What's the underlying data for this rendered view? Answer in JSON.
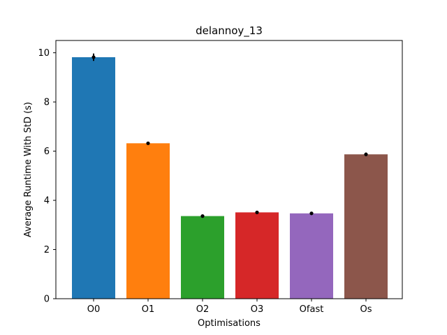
{
  "chart_data": {
    "type": "bar",
    "title": "delannoy_13",
    "xlabel": "Optimisations",
    "ylabel": "Average Runtime With StD (s)",
    "categories": [
      "O0",
      "O1",
      "O2",
      "O3",
      "Ofast",
      "Os"
    ],
    "values": [
      9.82,
      6.32,
      3.36,
      3.51,
      3.47,
      5.87
    ],
    "errors": [
      0.15,
      0.05,
      0.03,
      0.03,
      0.03,
      0.07
    ],
    "colors": [
      "#1f77b4",
      "#ff7f0e",
      "#2ca02c",
      "#d62728",
      "#9467bd",
      "#8c564b"
    ],
    "ylim": [
      0,
      10.5
    ],
    "yticks": [
      0,
      2,
      4,
      6,
      8,
      10
    ],
    "grid": false,
    "legend": "none"
  }
}
